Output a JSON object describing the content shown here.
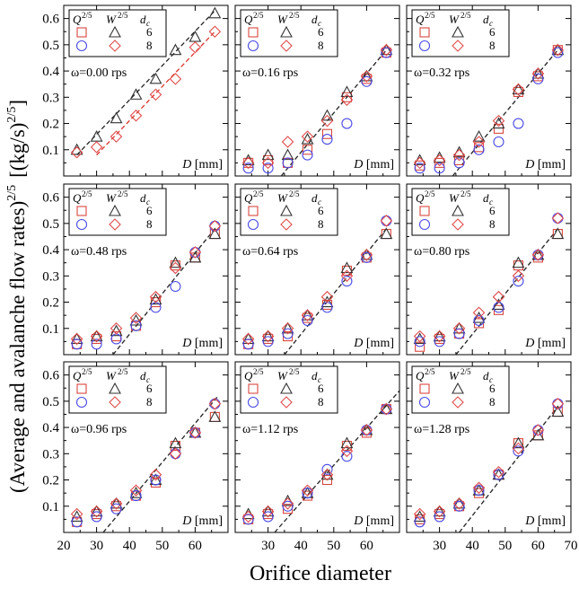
{
  "figure": {
    "ylabel_main": "(Average and avalanche flow rates)",
    "ylabel_exp": "2/5",
    "ylabel_unit": "[(kg/s)",
    "ylabel_unit_exp": "2/5",
    "ylabel_unit_close": "]",
    "xlabel": "Orifice diameter",
    "panel_xlabel_var": "D",
    "panel_xlabel_unit": "[mm]",
    "legend_headers": {
      "Q": "Q",
      "Q_exp": "2/5",
      "W": "W",
      "W_exp": "2/5",
      "dc": "d",
      "dc_sub": "c"
    },
    "legend_rows": [
      "6",
      "8"
    ],
    "colors": {
      "black_6": "#333333",
      "red_6": "#d9463f",
      "blue_8": "#4a4ae6",
      "red_8": "#e04a4a",
      "fit_black": "#222222",
      "fit_red": "#d9342b"
    }
  },
  "chart_data": [
    {
      "type": "scatter",
      "omega_label": "ω=0.00 rps",
      "xlim": [
        20,
        70
      ],
      "ylim": [
        0,
        0.65
      ],
      "xticks": [
        20,
        30,
        40,
        50,
        60,
        70
      ],
      "yticks": [
        0.1,
        0.2,
        0.3,
        0.4,
        0.5,
        0.6
      ],
      "x": [
        24,
        30,
        36,
        42,
        48,
        54,
        60,
        66
      ],
      "series": [
        {
          "name": "Q 6",
          "marker": "square",
          "color": "#d9463f",
          "values": [
            null,
            null,
            null,
            null,
            null,
            null,
            null,
            null
          ]
        },
        {
          "name": "W 6",
          "marker": "triangle",
          "color": "#333333",
          "values": [
            0.1,
            0.15,
            0.22,
            0.31,
            0.37,
            0.48,
            0.53,
            0.62
          ]
        },
        {
          "name": "Q 8",
          "marker": "circle",
          "color": "#4a4ae6",
          "values": [
            null,
            null,
            null,
            null,
            null,
            null,
            null,
            null
          ]
        },
        {
          "name": "W 8",
          "marker": "diamond",
          "color": "#e04a4a",
          "values": [
            0.09,
            0.11,
            0.15,
            0.23,
            0.31,
            0.37,
            0.49,
            0.55
          ]
        }
      ],
      "fits": [
        {
          "color": "#222222",
          "x": [
            24,
            66
          ],
          "y": [
            0.08,
            0.63
          ]
        },
        {
          "color": "#d9342b",
          "x": [
            30,
            66
          ],
          "y": [
            0.08,
            0.55
          ]
        }
      ]
    },
    {
      "type": "scatter",
      "omega_label": "ω=0.16 rps",
      "xlim": [
        20,
        70
      ],
      "ylim": [
        0,
        0.65
      ],
      "xticks": [
        20,
        30,
        40,
        50,
        60,
        70
      ],
      "yticks": [
        0.1,
        0.2,
        0.3,
        0.4,
        0.5,
        0.6
      ],
      "x": [
        24,
        30,
        36,
        42,
        48,
        54,
        60,
        66
      ],
      "series": [
        {
          "name": "Q 6",
          "marker": "square",
          "color": "#d9463f",
          "values": [
            0.05,
            0.06,
            0.05,
            0.1,
            0.16,
            0.3,
            0.37,
            0.47
          ]
        },
        {
          "name": "W 6",
          "marker": "triangle",
          "color": "#333333",
          "values": [
            0.06,
            0.08,
            0.08,
            0.14,
            0.23,
            0.32,
            0.38,
            0.48
          ]
        },
        {
          "name": "Q 8",
          "marker": "circle",
          "color": "#4a4ae6",
          "values": [
            0.03,
            0.03,
            0.05,
            0.08,
            0.14,
            0.2,
            0.36,
            0.47
          ]
        },
        {
          "name": "W 8",
          "marker": "diamond",
          "color": "#e04a4a",
          "values": [
            0.05,
            0.05,
            0.13,
            0.15,
            0.21,
            0.29,
            0.38,
            0.48
          ]
        }
      ],
      "fits": [
        {
          "color": "#222222",
          "x": [
            34,
            66
          ],
          "y": [
            0.0,
            0.48
          ]
        }
      ]
    },
    {
      "type": "scatter",
      "omega_label": "ω=0.32 rps",
      "xlim": [
        20,
        70
      ],
      "ylim": [
        0,
        0.65
      ],
      "xticks": [
        20,
        30,
        40,
        50,
        60,
        70
      ],
      "yticks": [
        0.1,
        0.2,
        0.3,
        0.4,
        0.5,
        0.6
      ],
      "x": [
        24,
        30,
        36,
        42,
        48,
        54,
        60,
        66
      ],
      "series": [
        {
          "name": "Q 6",
          "marker": "square",
          "color": "#d9463f",
          "values": [
            0.04,
            0.05,
            0.06,
            0.11,
            0.18,
            0.32,
            0.38,
            0.48
          ]
        },
        {
          "name": "W 6",
          "marker": "triangle",
          "color": "#333333",
          "values": [
            0.06,
            0.07,
            0.09,
            0.15,
            0.2,
            0.33,
            0.39,
            0.48
          ]
        },
        {
          "name": "Q 8",
          "marker": "circle",
          "color": "#4a4ae6",
          "values": [
            0.03,
            0.03,
            0.05,
            0.1,
            0.13,
            0.2,
            0.37,
            0.47
          ]
        },
        {
          "name": "W 8",
          "marker": "diamond",
          "color": "#e04a4a",
          "values": [
            0.05,
            0.06,
            0.08,
            0.13,
            0.21,
            0.33,
            0.39,
            0.48
          ]
        }
      ],
      "fits": [
        {
          "color": "#222222",
          "x": [
            34,
            66
          ],
          "y": [
            0.0,
            0.48
          ]
        }
      ]
    },
    {
      "type": "scatter",
      "omega_label": "ω=0.48 rps",
      "xlim": [
        20,
        70
      ],
      "ylim": [
        0,
        0.65
      ],
      "xticks": [
        20,
        30,
        40,
        50,
        60,
        70
      ],
      "yticks": [
        0.1,
        0.2,
        0.3,
        0.4,
        0.5,
        0.6
      ],
      "x": [
        24,
        30,
        36,
        42,
        48,
        54,
        60,
        66
      ],
      "series": [
        {
          "name": "Q 6",
          "marker": "square",
          "color": "#d9463f",
          "values": [
            0.04,
            0.06,
            0.07,
            0.11,
            0.2,
            0.34,
            0.37,
            0.46
          ]
        },
        {
          "name": "W 6",
          "marker": "triangle",
          "color": "#333333",
          "values": [
            0.06,
            0.07,
            0.09,
            0.13,
            0.21,
            0.35,
            0.37,
            0.46
          ]
        },
        {
          "name": "Q 8",
          "marker": "circle",
          "color": "#4a4ae6",
          "values": [
            0.04,
            0.04,
            0.06,
            0.11,
            0.18,
            0.26,
            0.39,
            0.49
          ]
        },
        {
          "name": "W 8",
          "marker": "diamond",
          "color": "#e04a4a",
          "values": [
            0.06,
            0.07,
            0.1,
            0.14,
            0.22,
            0.33,
            0.39,
            0.49
          ]
        }
      ],
      "fits": [
        {
          "color": "#222222",
          "x": [
            35,
            66
          ],
          "y": [
            0.0,
            0.48
          ]
        }
      ]
    },
    {
      "type": "scatter",
      "omega_label": "ω=0.64 rps",
      "xlim": [
        20,
        70
      ],
      "ylim": [
        0,
        0.65
      ],
      "xticks": [
        20,
        30,
        40,
        50,
        60,
        70
      ],
      "yticks": [
        0.1,
        0.2,
        0.3,
        0.4,
        0.5,
        0.6
      ],
      "x": [
        24,
        30,
        36,
        42,
        48,
        54,
        60,
        66
      ],
      "series": [
        {
          "name": "Q 6",
          "marker": "square",
          "color": "#d9463f",
          "values": [
            0.04,
            0.06,
            0.07,
            0.14,
            0.19,
            0.32,
            0.37,
            0.46
          ]
        },
        {
          "name": "W 6",
          "marker": "triangle",
          "color": "#333333",
          "values": [
            0.06,
            0.07,
            0.1,
            0.15,
            0.2,
            0.33,
            0.38,
            0.46
          ]
        },
        {
          "name": "Q 8",
          "marker": "circle",
          "color": "#4a4ae6",
          "values": [
            0.04,
            0.05,
            0.08,
            0.13,
            0.18,
            0.28,
            0.37,
            0.51
          ]
        },
        {
          "name": "W 8",
          "marker": "diamond",
          "color": "#e04a4a",
          "values": [
            0.06,
            0.07,
            0.1,
            0.15,
            0.22,
            0.3,
            0.38,
            0.51
          ]
        }
      ],
      "fits": [
        {
          "color": "#222222",
          "x": [
            35,
            66
          ],
          "y": [
            0.0,
            0.48
          ]
        }
      ]
    },
    {
      "type": "scatter",
      "omega_label": "ω=0.80 rps",
      "xlim": [
        20,
        70
      ],
      "ylim": [
        0,
        0.65
      ],
      "xticks": [
        20,
        30,
        40,
        50,
        60,
        70
      ],
      "yticks": [
        0.1,
        0.2,
        0.3,
        0.4,
        0.5,
        0.6
      ],
      "x": [
        24,
        30,
        36,
        42,
        48,
        54,
        60,
        66
      ],
      "series": [
        {
          "name": "Q 6",
          "marker": "square",
          "color": "#d9463f",
          "values": [
            0.03,
            0.06,
            0.08,
            0.12,
            0.17,
            0.34,
            0.37,
            0.46
          ]
        },
        {
          "name": "W 6",
          "marker": "triangle",
          "color": "#333333",
          "values": [
            0.06,
            0.07,
            0.1,
            0.14,
            0.19,
            0.35,
            0.38,
            0.46
          ]
        },
        {
          "name": "Q 8",
          "marker": "circle",
          "color": "#4a4ae6",
          "values": [
            0.05,
            0.05,
            0.08,
            0.13,
            0.18,
            0.28,
            0.38,
            0.52
          ]
        },
        {
          "name": "W 8",
          "marker": "diamond",
          "color": "#e04a4a",
          "values": [
            0.07,
            0.07,
            0.1,
            0.16,
            0.22,
            0.3,
            0.38,
            0.52
          ]
        }
      ],
      "fits": [
        {
          "color": "#222222",
          "x": [
            35,
            66
          ],
          "y": [
            0.0,
            0.48
          ]
        }
      ]
    },
    {
      "type": "scatter",
      "omega_label": "ω=0.96 rps",
      "xlim": [
        20,
        70
      ],
      "ylim": [
        0,
        0.65
      ],
      "xticks": [
        20,
        30,
        40,
        50,
        60,
        70
      ],
      "yticks": [
        0.1,
        0.2,
        0.3,
        0.4,
        0.5,
        0.6
      ],
      "x": [
        24,
        30,
        36,
        42,
        48,
        54,
        60,
        66
      ],
      "series": [
        {
          "name": "Q 6",
          "marker": "square",
          "color": "#d9463f",
          "values": [
            0.04,
            0.07,
            0.1,
            0.14,
            0.19,
            0.33,
            0.38,
            0.44
          ]
        },
        {
          "name": "W 6",
          "marker": "triangle",
          "color": "#333333",
          "values": [
            0.06,
            0.08,
            0.11,
            0.15,
            0.2,
            0.34,
            0.38,
            0.44
          ]
        },
        {
          "name": "Q 8",
          "marker": "circle",
          "color": "#4a4ae6",
          "values": [
            0.04,
            0.06,
            0.09,
            0.14,
            0.2,
            0.3,
            0.38,
            0.49
          ]
        },
        {
          "name": "W 8",
          "marker": "diamond",
          "color": "#e04a4a",
          "values": [
            0.07,
            0.08,
            0.11,
            0.16,
            0.22,
            0.3,
            0.38,
            0.49
          ]
        }
      ],
      "fits": [
        {
          "color": "#222222",
          "x": [
            32,
            67
          ],
          "y": [
            0.0,
            0.52
          ]
        }
      ]
    },
    {
      "type": "scatter",
      "omega_label": "ω=1.12 rps",
      "xlim": [
        20,
        70
      ],
      "ylim": [
        0,
        0.65
      ],
      "xticks": [
        20,
        30,
        40,
        50,
        60,
        70
      ],
      "yticks": [
        0.1,
        0.2,
        0.3,
        0.4,
        0.5,
        0.6
      ],
      "x": [
        24,
        30,
        36,
        42,
        48,
        54,
        60,
        66
      ],
      "series": [
        {
          "name": "Q 6",
          "marker": "square",
          "color": "#d9463f",
          "values": [
            0.05,
            0.07,
            0.09,
            0.14,
            0.2,
            0.33,
            0.38,
            0.47
          ]
        },
        {
          "name": "W 6",
          "marker": "triangle",
          "color": "#333333",
          "values": [
            0.07,
            0.08,
            0.12,
            0.15,
            0.22,
            0.34,
            0.39,
            0.47
          ]
        },
        {
          "name": "Q 8",
          "marker": "circle",
          "color": "#4a4ae6",
          "values": [
            0.05,
            0.06,
            0.1,
            0.15,
            0.24,
            0.29,
            0.39,
            0.47
          ]
        },
        {
          "name": "W 8",
          "marker": "diamond",
          "color": "#e04a4a",
          "values": [
            0.06,
            0.08,
            0.11,
            0.16,
            0.22,
            0.31,
            0.39,
            0.47
          ]
        }
      ],
      "fits": [
        {
          "color": "#222222",
          "x": [
            32,
            70
          ],
          "y": [
            0.0,
            0.54
          ]
        }
      ]
    },
    {
      "type": "scatter",
      "omega_label": "ω=1.28 rps",
      "xlim": [
        20,
        70
      ],
      "ylim": [
        0,
        0.65
      ],
      "xticks": [
        20,
        30,
        40,
        50,
        60,
        70
      ],
      "yticks": [
        0.1,
        0.2,
        0.3,
        0.4,
        0.5,
        0.6
      ],
      "x": [
        24,
        30,
        36,
        42,
        48,
        54,
        60,
        66
      ],
      "series": [
        {
          "name": "Q 6",
          "marker": "square",
          "color": "#d9463f",
          "values": [
            0.05,
            0.07,
            0.1,
            0.15,
            0.22,
            0.34,
            0.37,
            0.46
          ]
        },
        {
          "name": "W 6",
          "marker": "triangle",
          "color": "#333333",
          "values": [
            0.06,
            0.08,
            0.11,
            0.16,
            0.22,
            0.34,
            0.37,
            0.46
          ]
        },
        {
          "name": "Q 8",
          "marker": "circle",
          "color": "#4a4ae6",
          "values": [
            0.04,
            0.06,
            0.1,
            0.16,
            0.22,
            0.31,
            0.39,
            0.49
          ]
        },
        {
          "name": "W 8",
          "marker": "diamond",
          "color": "#e04a4a",
          "values": [
            0.07,
            0.08,
            0.11,
            0.17,
            0.23,
            0.32,
            0.39,
            0.49
          ]
        }
      ],
      "fits": [
        {
          "color": "#222222",
          "x": [
            36,
            66
          ],
          "y": [
            0.0,
            0.48
          ]
        }
      ]
    }
  ]
}
